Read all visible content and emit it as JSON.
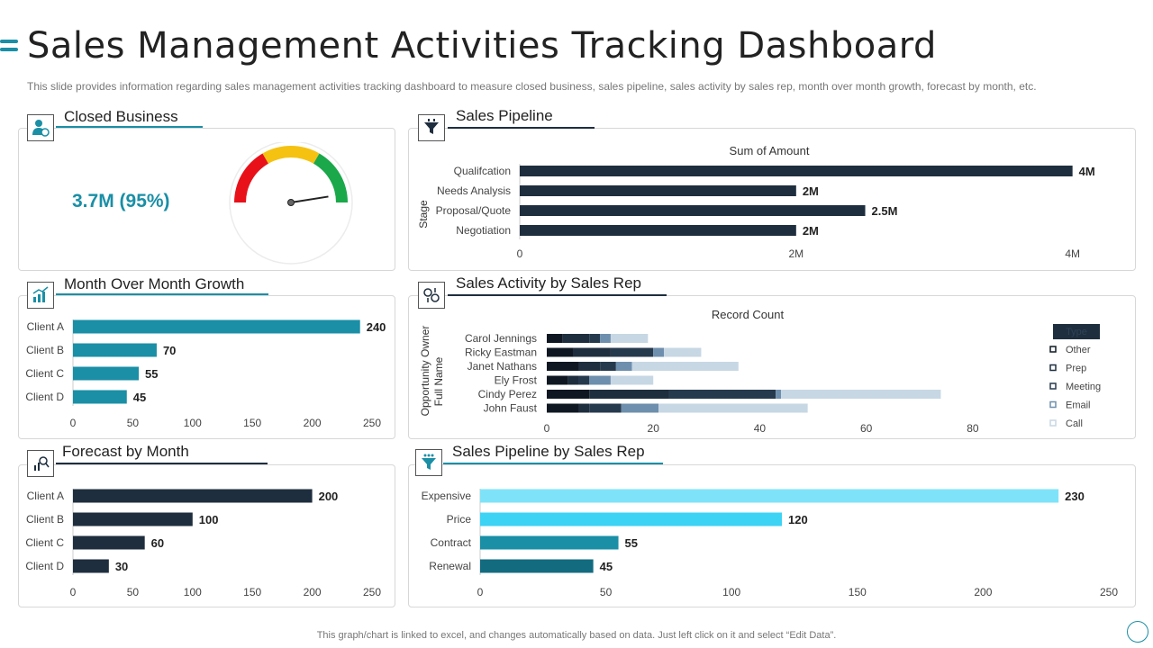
{
  "header": {
    "title": "Sales Management Activities Tracking Dashboard",
    "subtitle": "This slide provides information regarding sales management activities tracking dashboard to measure closed business, sales pipeline, sales activity by sales rep, month over month growth, forecast by month, etc."
  },
  "footer": {
    "note": "This graph/chart is linked to excel, and changes automatically based on data. Just left click on it and select “Edit Data”."
  },
  "colors": {
    "accent": "#1a8fa6",
    "navy": "#1e2e3e",
    "teal": "#1a8fa6",
    "gauge_red": "#e8111a",
    "gauge_yellow": "#f5c211",
    "gauge_green": "#1aa84a"
  },
  "panels": {
    "closed_business": {
      "title": "Closed Business",
      "value": "3.7M (95%)"
    },
    "sales_pipeline": {
      "title": "Sales Pipeline"
    },
    "month_growth": {
      "title": "Month Over Month Growth"
    },
    "activity": {
      "title": "Sales Activity by Sales Rep"
    },
    "forecast": {
      "title": "Forecast by Month"
    },
    "pipeline_rep": {
      "title": "Sales Pipeline by Sales Rep"
    }
  },
  "chart_data": [
    {
      "id": "closed_business",
      "type": "gauge",
      "title": "Closed Business",
      "value_label": "3.7M (95%)",
      "value_fraction": 0.95,
      "bands": [
        {
          "color": "#e8111a"
        },
        {
          "color": "#f5c211"
        },
        {
          "color": "#1aa84a"
        }
      ]
    },
    {
      "id": "sales_pipeline",
      "type": "bar",
      "orientation": "horizontal",
      "title": "Sum of Amount",
      "ylabel": "Stage",
      "categories": [
        "Qualifcation",
        "Needs Analysis",
        "Proposal/Quote",
        "Negotiation"
      ],
      "values": [
        4000000,
        2000000,
        2500000,
        2000000
      ],
      "data_labels": [
        "4M",
        "2M",
        "2.5M",
        "2M"
      ],
      "xlim": [
        0,
        4100000
      ],
      "xticks": [
        0,
        2000000,
        4000000
      ],
      "xtick_labels": [
        "0",
        "2M",
        "4M"
      ]
    },
    {
      "id": "month_growth",
      "type": "bar",
      "orientation": "horizontal",
      "categories": [
        "Client A",
        "Client B",
        "Client C",
        "Client D"
      ],
      "values": [
        240,
        70,
        55,
        45
      ],
      "xlim": [
        0,
        250
      ],
      "xticks": [
        0,
        50,
        100,
        150,
        200,
        250
      ]
    },
    {
      "id": "activity",
      "type": "stacked_bar",
      "orientation": "horizontal",
      "title": "Record Count",
      "ylabel": "Opportunity Owner Full Name",
      "legend_title": "Type",
      "categories": [
        "Carol Jennings",
        "Ricky Eastman",
        "Janet Nathans",
        "Ely Frost",
        "Cindy Perez",
        "John Faust"
      ],
      "series": [
        {
          "name": "Other",
          "color": "#0f1822",
          "values": [
            3,
            5,
            6,
            4,
            8,
            6
          ]
        },
        {
          "name": "Prep",
          "color": "#1e2e3e",
          "values": [
            5,
            7,
            4,
            2,
            15,
            2
          ]
        },
        {
          "name": "Meeting",
          "color": "#263a4e",
          "values": [
            2,
            8,
            3,
            2,
            20,
            6
          ]
        },
        {
          "name": "Email",
          "color": "#6e8fad",
          "values": [
            2,
            2,
            3,
            4,
            1,
            7
          ]
        },
        {
          "name": "Call",
          "color": "#c7d7e4",
          "values": [
            7,
            7,
            20,
            8,
            30,
            28
          ]
        }
      ],
      "xlim": [
        0,
        90
      ],
      "xticks": [
        0,
        20,
        40,
        60,
        80
      ]
    },
    {
      "id": "forecast",
      "type": "bar",
      "orientation": "horizontal",
      "title": "Forecast by Month",
      "categories": [
        "Client A",
        "Client B",
        "Client C",
        "Client D"
      ],
      "values": [
        200,
        100,
        60,
        30
      ],
      "xlim": [
        0,
        250
      ],
      "xticks": [
        0,
        50,
        100,
        150,
        200,
        250
      ]
    },
    {
      "id": "pipeline_rep",
      "type": "bar",
      "orientation": "horizontal",
      "title": "Sales Pipeline by Sales Rep",
      "categories": [
        "Expensive",
        "Price",
        "Contract",
        "Renewal"
      ],
      "values": [
        230,
        120,
        55,
        45
      ],
      "bar_colors": [
        "#7ee3f9",
        "#3cd3f5",
        "#1a8fa6",
        "#136b80"
      ],
      "xlim": [
        0,
        250
      ],
      "xticks": [
        0,
        50,
        100,
        150,
        200,
        250
      ]
    }
  ]
}
